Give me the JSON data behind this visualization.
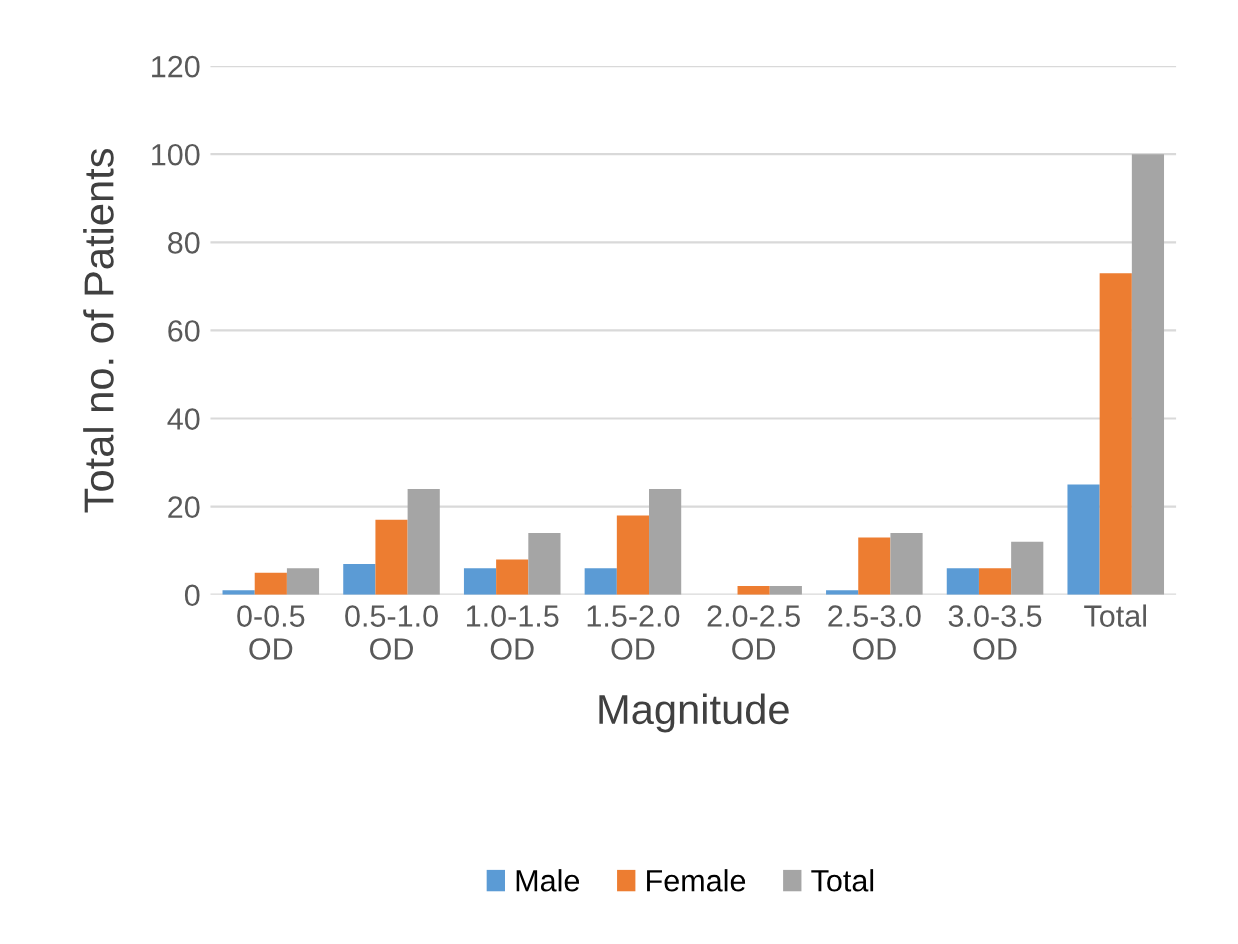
{
  "chart_data": {
    "type": "bar",
    "xlabel": "Magnitude",
    "ylabel": "Total no. of Patients",
    "categories": [
      "0-0.5\nOD",
      "0.5-1.0\nOD",
      "1.0-1.5\nOD",
      "1.5-2.0\nOD",
      "2.0-2.5\nOD",
      "2.5-3.0\nOD",
      "3.0-3.5\nOD",
      "Total"
    ],
    "series": [
      {
        "name": "Male",
        "color": "#5b9bd5",
        "values": [
          1,
          7,
          6,
          6,
          0,
          1,
          6,
          25
        ]
      },
      {
        "name": "Female",
        "color": "#ed7d31",
        "values": [
          5,
          17,
          8,
          18,
          2,
          13,
          6,
          73
        ]
      },
      {
        "name": "Total",
        "color": "#a5a5a5",
        "values": [
          6,
          24,
          14,
          24,
          2,
          14,
          12,
          100
        ]
      }
    ],
    "ylim": [
      0,
      120
    ],
    "yticks": [
      0,
      20,
      40,
      60,
      80,
      100,
      120
    ],
    "grid": "y",
    "legend": "bottom"
  }
}
